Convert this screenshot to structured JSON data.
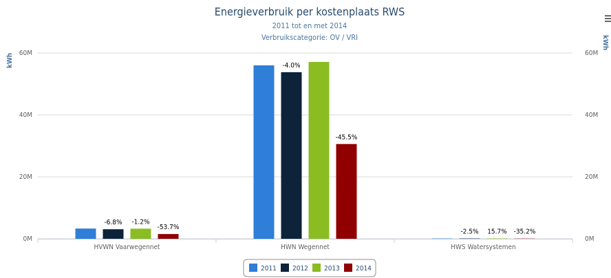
{
  "chart_data": {
    "type": "bar",
    "title": "Energieverbruik per kostenplaats RWS",
    "subtitle": [
      "2011 tot en met 2014",
      "Verbruikscategorie: OV / VRI"
    ],
    "ylabel": "kWh",
    "y2label": "kWh",
    "categories": [
      "HVWN Vaarwegennet",
      "HWN Wegennet",
      "HWS Watersystemen"
    ],
    "series": [
      {
        "name": "2011",
        "color": "#2f7ed8",
        "values": [
          3300000,
          56000000,
          100000
        ]
      },
      {
        "name": "2012",
        "color": "#0d233a",
        "values": [
          3080000,
          53800000,
          97500
        ],
        "change_labels": [
          "-6.8%",
          "-4.0%",
          "-2.5%"
        ]
      },
      {
        "name": "2013",
        "color": "#8bbc21",
        "values": [
          3260000,
          57100000,
          115700
        ],
        "change_labels": [
          "-1.2%",
          null,
          "15.7%"
        ]
      },
      {
        "name": "2014",
        "color": "#910000",
        "values": [
          1530000,
          30600000,
          64800
        ],
        "change_labels": [
          "-53.7%",
          "-45.5%",
          "-35.2%"
        ]
      }
    ],
    "ylim": [
      0,
      60000000
    ],
    "yticks": [
      {
        "value": 0,
        "label": "0M"
      },
      {
        "value": 20000000,
        "label": "20M"
      },
      {
        "value": 40000000,
        "label": "40M"
      },
      {
        "value": 60000000,
        "label": "60M"
      }
    ],
    "y2lim": [
      0,
      60000000
    ],
    "y2ticks": [
      {
        "value": 0,
        "label": "0M"
      },
      {
        "value": 20000000,
        "label": "20M"
      },
      {
        "value": 40000000,
        "label": "40M"
      },
      {
        "value": 60000000,
        "label": "60M"
      }
    ],
    "grid": true,
    "legend": "bottom"
  }
}
